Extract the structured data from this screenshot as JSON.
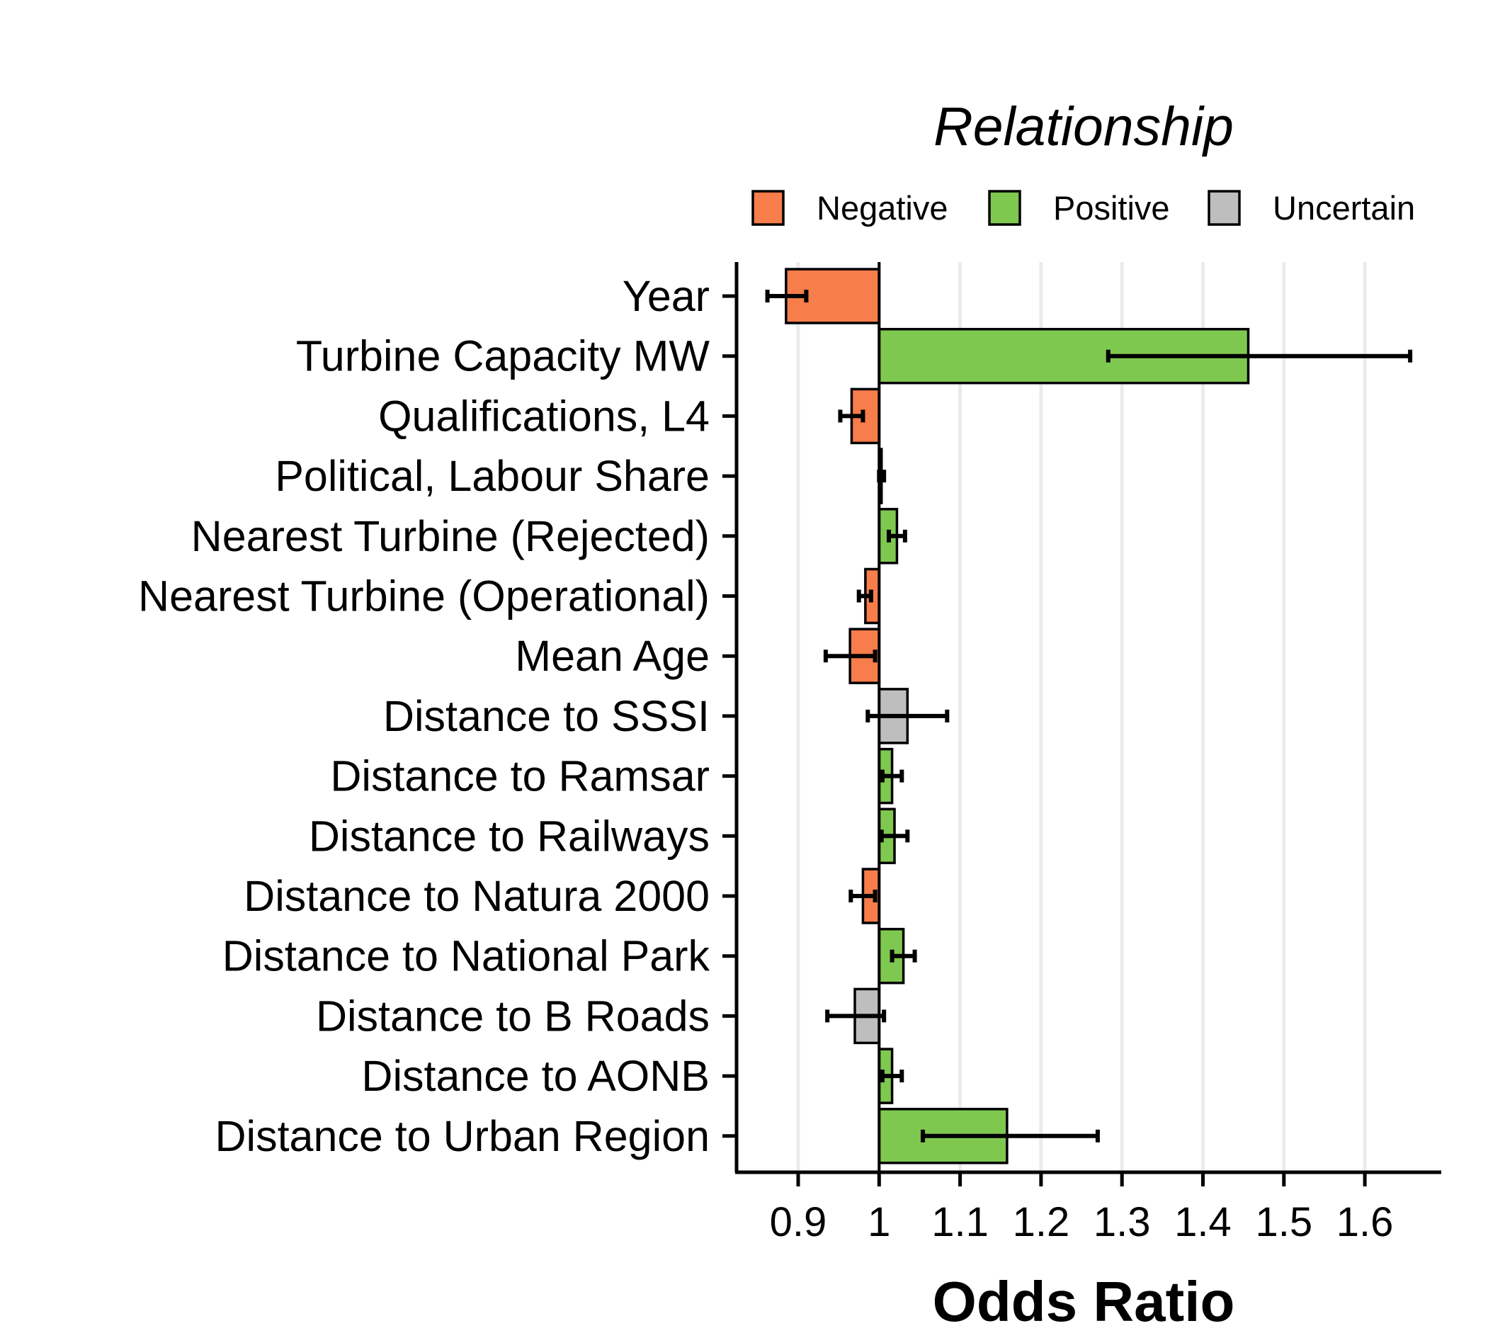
{
  "chart_data": {
    "type": "bar",
    "orientation": "horizontal",
    "baseline": 1,
    "xlabel": "Odds Ratio",
    "ylabel": "",
    "xlim": [
      0.82,
      1.69
    ],
    "x_ticks": [
      0.9,
      1,
      1.1,
      1.2,
      1.3,
      1.4,
      1.5,
      1.6
    ],
    "x_tick_labels": [
      "0.9",
      "1",
      "1.1",
      "1.2",
      "1.3",
      "1.4",
      "1.5",
      "1.6"
    ],
    "grid": "vertical major gridlines",
    "legend": {
      "title": "Relationship",
      "placement": "top",
      "entries": [
        {
          "name": "Negative",
          "color": "#F77D4A"
        },
        {
          "name": "Positive",
          "color": "#7FC850"
        },
        {
          "name": "Uncertain",
          "color": "#BEBEBE"
        }
      ]
    },
    "categories": [
      "Year",
      "Turbine Capacity MW",
      "Qualifications, L4",
      "Political, Labour Share",
      "Nearest Turbine (Rejected)",
      "Nearest Turbine (Operational)",
      "Mean Age",
      "Distance to SSSI",
      "Distance to Ramsar",
      "Distance to Railways",
      "Distance to Natura 2000",
      "Distance to National Park",
      "Distance to B Roads",
      "Distance to AONB",
      "Distance to Urban Region"
    ],
    "values": [
      0.885,
      1.456,
      0.966,
      1.003,
      1.022,
      0.983,
      0.964,
      1.035,
      1.016,
      1.019,
      0.98,
      1.03,
      0.97,
      1.016,
      1.158
    ],
    "ci_lower": [
      0.862,
      1.283,
      0.952,
      1.0,
      1.012,
      0.975,
      0.934,
      0.986,
      1.004,
      1.003,
      0.965,
      1.016,
      0.936,
      1.004,
      1.054
    ],
    "ci_upper": [
      0.91,
      1.656,
      0.98,
      1.006,
      1.032,
      0.99,
      0.995,
      1.084,
      1.028,
      1.035,
      0.995,
      1.044,
      1.006,
      1.028,
      1.27
    ],
    "relationship": [
      "Negative",
      "Positive",
      "Negative",
      "Positive",
      "Positive",
      "Negative",
      "Negative",
      "Uncertain",
      "Positive",
      "Positive",
      "Negative",
      "Positive",
      "Uncertain",
      "Positive",
      "Positive"
    ]
  }
}
